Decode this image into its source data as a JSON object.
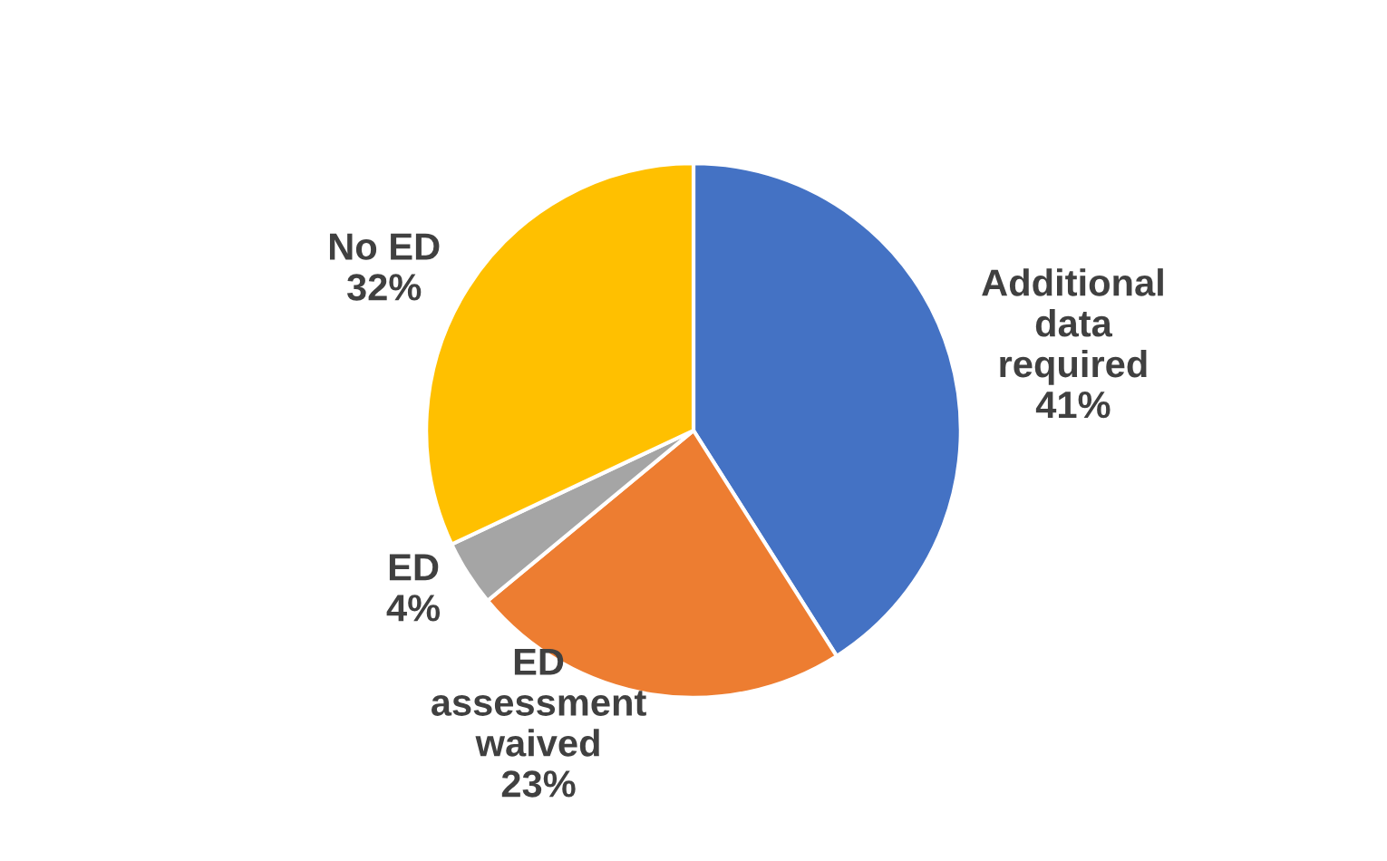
{
  "chart_data": {
    "type": "pie",
    "categories": [
      "Additional data required",
      "ED assessment waived",
      "ED",
      "No ED"
    ],
    "values": [
      41,
      23,
      4,
      32
    ],
    "value_labels": [
      "41%",
      "23%",
      "4%",
      "32%"
    ],
    "colors": [
      "#4472c4",
      "#ed7d31",
      "#a5a5a5",
      "#ffc000"
    ]
  }
}
